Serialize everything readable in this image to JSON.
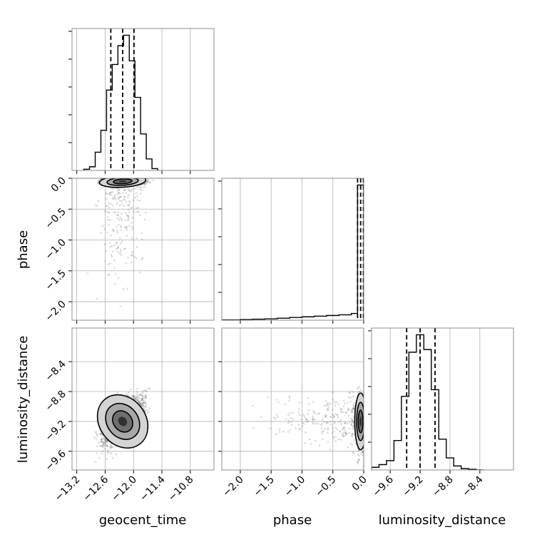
{
  "chart_data": {
    "type": "corner",
    "parameters": [
      "geocent_time",
      "phase",
      "luminosity_distance"
    ],
    "axis_labels": {
      "geocent_time": "geocent_time",
      "phase": "phase",
      "luminosity_distance": "luminosity_distance"
    },
    "ranges": {
      "geocent_time": [
        -13.3,
        -10.3
      ],
      "phase": [
        -2.3,
        0.0
      ],
      "luminosity_distance": [
        -9.85,
        -7.95
      ]
    },
    "ticks": {
      "geocent_time": {
        "values": [
          -13.2,
          -12.6,
          -12.0,
          -11.4,
          -10.8
        ],
        "labels": [
          "−13.2",
          "−12.6",
          "−12.0",
          "−11.4",
          "−10.8"
        ]
      },
      "phase": {
        "values": [
          -2.0,
          -1.5,
          -1.0,
          -0.5,
          0.0
        ],
        "labels": [
          "−2.0",
          "−1.5",
          "−1.0",
          "−0.5",
          "0.0"
        ]
      },
      "luminosity_distance": {
        "values": [
          -9.6,
          -9.2,
          -8.8,
          -8.4
        ],
        "labels": [
          "−9.6",
          "−9.2",
          "−8.8",
          "−8.4"
        ]
      }
    },
    "quantiles": {
      "geocent_time": [
        -12.48,
        -12.23,
        -11.99
      ],
      "phase": [
        -0.1,
        -0.05,
        -0.005
      ],
      "luminosity_distance": [
        -9.38,
        -9.2,
        -9.0
      ]
    },
    "histograms": {
      "geocent_time": {
        "edges": [
          -13.05,
          -12.93,
          -12.81,
          -12.69,
          -12.57,
          -12.45,
          -12.33,
          -12.21,
          -12.09,
          -11.97,
          -11.85,
          -11.73,
          -11.61,
          -11.49
        ],
        "counts": [
          2,
          6,
          30,
          66,
          132,
          174,
          205,
          222,
          180,
          120,
          60,
          19,
          3
        ]
      },
      "phase": {
        "edges": [
          -2.3,
          -2.0,
          -1.8,
          -1.6,
          -1.4,
          -1.2,
          -1.0,
          -0.8,
          -0.6,
          -0.4,
          -0.2,
          -0.1,
          0.0
        ],
        "counts": [
          0.5,
          1,
          1.5,
          2,
          3,
          4,
          5,
          6,
          7,
          8,
          10,
          200
        ]
      },
      "luminosity_distance": {
        "edges": [
          -9.85,
          -9.75,
          -9.65,
          -9.55,
          -9.45,
          -9.35,
          -9.25,
          -9.15,
          -9.05,
          -8.95,
          -8.85,
          -8.75,
          -8.65,
          -8.55,
          -8.45,
          -8.35
        ],
        "counts": [
          4,
          8,
          14,
          44,
          110,
          176,
          202,
          180,
          120,
          46,
          18,
          6,
          2,
          1,
          0
        ]
      }
    },
    "correlations": {
      "geocent_time_vs_phase": 0.05,
      "geocent_time_vs_luminosity_distance": 0.6,
      "phase_vs_luminosity_distance": 0.0
    },
    "grid": true,
    "colors": {
      "points": "#555555",
      "frame": "#808080",
      "grid": "#b0b0b0",
      "lines": "#000000"
    }
  }
}
